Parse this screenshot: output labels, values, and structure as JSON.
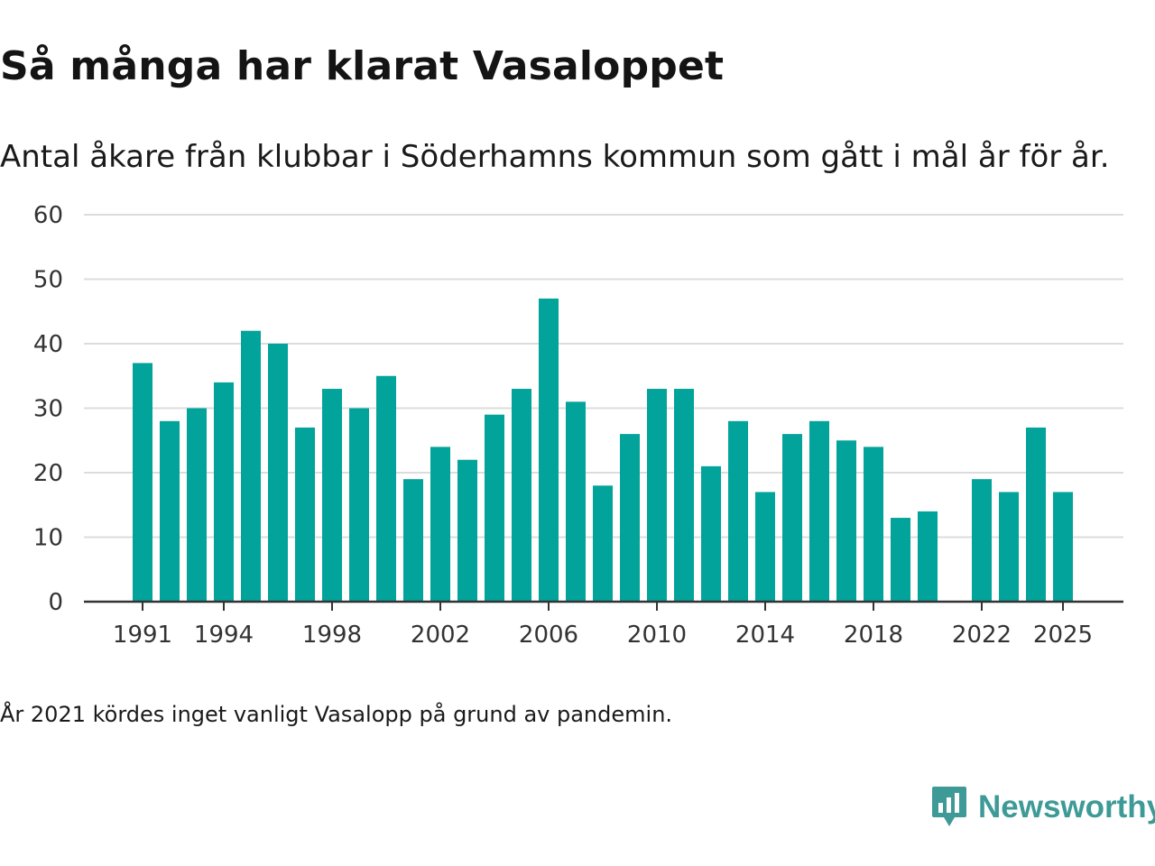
{
  "header": {
    "title": "Så många har klarat Vasaloppet",
    "subtitle": "Antal åkare från klubbar i Söderhamns kommun som gått i mål år för år."
  },
  "footer": {
    "note": "År 2021 kördes inget vanligt Vasalopp på grund av pandemin.",
    "brand": "Newsworthy",
    "brand_icon": "newsworthy-logo-icon"
  },
  "colors": {
    "bar": "#02a39a",
    "grid": "#dcdcdc",
    "axis": "#333333",
    "tick_text": "#333333",
    "brand": "#3d9a97"
  },
  "chart_data": {
    "type": "bar",
    "title": "Så många har klarat Vasaloppet",
    "subtitle": "Antal åkare från klubbar i Söderhamns kommun som gått i mål år för år.",
    "xlabel": "",
    "ylabel": "",
    "ylim": [
      0,
      60
    ],
    "yticks": [
      0,
      10,
      20,
      30,
      40,
      50,
      60
    ],
    "grid": true,
    "categories": [
      1991,
      1992,
      1993,
      1994,
      1995,
      1996,
      1997,
      1998,
      1999,
      2000,
      2001,
      2002,
      2003,
      2004,
      2005,
      2006,
      2007,
      2008,
      2009,
      2010,
      2011,
      2012,
      2013,
      2014,
      2015,
      2016,
      2017,
      2018,
      2019,
      2020,
      2021,
      2022,
      2023,
      2024,
      2025
    ],
    "values": [
      37,
      28,
      30,
      34,
      42,
      40,
      27,
      33,
      30,
      35,
      19,
      24,
      22,
      29,
      33,
      47,
      31,
      18,
      26,
      33,
      33,
      21,
      28,
      17,
      26,
      28,
      25,
      24,
      13,
      14,
      null,
      19,
      17,
      27,
      17
    ],
    "xtick_labels": [
      "1991",
      "1994",
      "1998",
      "2002",
      "2006",
      "2010",
      "2014",
      "2018",
      "2022",
      "2025"
    ]
  }
}
